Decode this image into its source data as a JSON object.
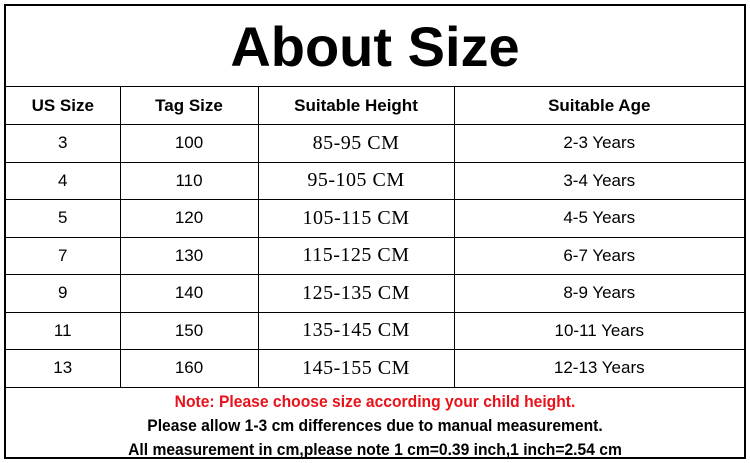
{
  "title": "About Size",
  "columns": [
    "US Size",
    "Tag Size",
    "Suitable Height",
    "Suitable Age"
  ],
  "rows": [
    [
      "3",
      "100",
      "85-95 CM",
      "2-3 Years"
    ],
    [
      "4",
      "110",
      "95-105 CM",
      "3-4 Years"
    ],
    [
      "5",
      "120",
      "105-115 CM",
      "4-5 Years"
    ],
    [
      "7",
      "130",
      "115-125 CM",
      "6-7 Years"
    ],
    [
      "9",
      "140",
      "125-135 CM",
      "8-9 Years"
    ],
    [
      "11",
      "150",
      "135-145 CM",
      "10-11 Years"
    ],
    [
      "13",
      "160",
      "145-155 CM",
      "12-13 Years"
    ]
  ],
  "notes": {
    "warning": "Note: Please choose size according your child height.",
    "line2": "Please allow 1-3 cm differences due to manual measurement.",
    "line3": "All measurement in cm,please note 1 cm=0.39 inch,1 inch=2.54 cm"
  },
  "colors": {
    "warning": "#e8121b",
    "text": "#000000",
    "background": "#ffffff"
  }
}
